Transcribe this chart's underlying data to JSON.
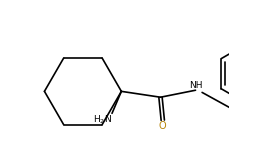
{
  "bg_color": "#ffffff",
  "line_color": "#000000",
  "label_color_O": "#b8860b",
  "label_color_N": "#000000",
  "figsize": [
    2.72,
    1.47
  ],
  "dpi": 100,
  "lw": 1.2
}
